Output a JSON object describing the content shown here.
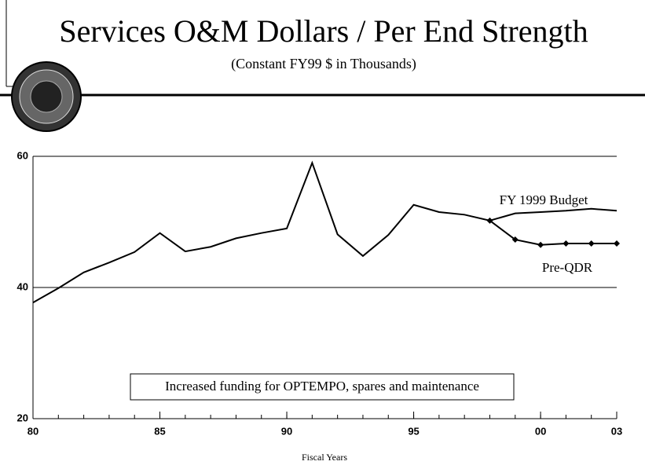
{
  "chart_data": {
    "type": "line",
    "title": "Services O&M Dollars / Per End Strength",
    "subtitle": "(Constant FY99 $ in Thousands)",
    "xlabel": "Fiscal Years",
    "annotation": "Increased funding for OPTEMPO, spares and maintenance",
    "x": [
      1980,
      1981,
      1982,
      1983,
      1984,
      1985,
      1986,
      1987,
      1988,
      1989,
      1990,
      1991,
      1992,
      1993,
      1994,
      1995,
      1996,
      1997,
      1998,
      1999,
      2000,
      2001,
      2002,
      2003
    ],
    "series": [
      {
        "name": "FY 1999 Budget",
        "color": "#000000",
        "values": [
          37.7,
          39.9,
          42.3,
          43.8,
          45.4,
          48.3,
          45.5,
          46.2,
          47.5,
          48.3,
          49.0,
          59.0,
          48.1,
          44.8,
          48.0,
          52.6,
          51.5,
          51.1,
          50.2,
          51.3,
          51.5,
          51.7,
          52.0,
          51.7
        ]
      },
      {
        "name": "Pre-QDR",
        "color": "#000000",
        "values": [
          null,
          null,
          null,
          null,
          null,
          null,
          null,
          null,
          null,
          null,
          null,
          null,
          null,
          null,
          null,
          null,
          null,
          null,
          50.2,
          47.3,
          46.5,
          46.7,
          46.7,
          46.7
        ]
      }
    ],
    "xlim": [
      1980,
      2003
    ],
    "xticks": [
      {
        "value": 1980,
        "label": "80"
      },
      {
        "value": 1985,
        "label": "85"
      },
      {
        "value": 1990,
        "label": "90"
      },
      {
        "value": 1995,
        "label": "95"
      },
      {
        "value": 2000,
        "label": "00"
      },
      {
        "value": 2003,
        "label": "03"
      }
    ],
    "ylim": [
      20,
      60
    ],
    "yticks": [
      20,
      40,
      60
    ],
    "grid": true
  }
}
